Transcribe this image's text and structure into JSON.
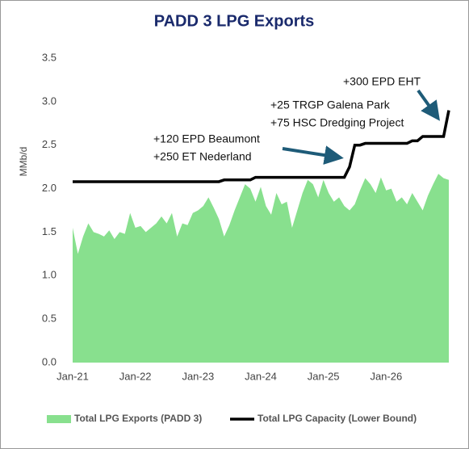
{
  "chart_data": {
    "type": "area-line",
    "title": "PADD 3 LPG Exports",
    "y_label": "MMb/d",
    "categories": [
      "Jan-21",
      null,
      null,
      null,
      null,
      null,
      null,
      null,
      null,
      null,
      null,
      null,
      "Jan-22",
      null,
      null,
      null,
      null,
      null,
      null,
      null,
      null,
      null,
      null,
      null,
      "Jan-23",
      null,
      null,
      null,
      null,
      null,
      null,
      null,
      null,
      null,
      null,
      null,
      "Jan-24",
      null,
      null,
      null,
      null,
      null,
      null,
      null,
      null,
      null,
      null,
      null,
      "Jan-25",
      null,
      null,
      null,
      null,
      null,
      null,
      null,
      null,
      null,
      null,
      null,
      "Jan-26",
      null,
      null,
      null,
      null,
      null,
      null,
      null,
      null,
      null,
      null,
      null,
      null
    ],
    "series": [
      {
        "name": "Total LPG Exports (PADD 3)",
        "kind": "area",
        "color": "#88e08e",
        "values": [
          1.55,
          1.25,
          1.45,
          1.6,
          1.5,
          1.48,
          1.45,
          1.52,
          1.42,
          1.5,
          1.48,
          1.72,
          1.55,
          1.57,
          1.5,
          1.55,
          1.6,
          1.68,
          1.6,
          1.72,
          1.45,
          1.6,
          1.58,
          1.72,
          1.75,
          1.8,
          1.9,
          1.78,
          1.65,
          1.45,
          1.58,
          1.75,
          1.9,
          2.05,
          2.0,
          1.85,
          2.02,
          1.8,
          1.7,
          1.95,
          1.82,
          1.85,
          1.55,
          1.75,
          1.95,
          2.1,
          2.05,
          1.9,
          2.1,
          1.95,
          1.85,
          1.9,
          1.8,
          1.75,
          1.82,
          1.98,
          2.12,
          2.05,
          1.95,
          2.13,
          1.98,
          2.0,
          1.85,
          1.9,
          1.82,
          1.95,
          1.85,
          1.75,
          1.92,
          2.05,
          2.17,
          2.12,
          2.1
        ]
      },
      {
        "name": "Total LPG Capacity (Lower Bound)",
        "kind": "line",
        "color": "#000000",
        "values": [
          2.08,
          2.08,
          2.08,
          2.08,
          2.08,
          2.08,
          2.08,
          2.08,
          2.08,
          2.08,
          2.08,
          2.08,
          2.08,
          2.08,
          2.08,
          2.08,
          2.08,
          2.08,
          2.08,
          2.08,
          2.08,
          2.08,
          2.08,
          2.08,
          2.08,
          2.08,
          2.08,
          2.08,
          2.08,
          2.1,
          2.1,
          2.1,
          2.1,
          2.1,
          2.1,
          2.13,
          2.13,
          2.13,
          2.13,
          2.13,
          2.13,
          2.13,
          2.13,
          2.13,
          2.13,
          2.13,
          2.13,
          2.13,
          2.13,
          2.13,
          2.13,
          2.13,
          2.13,
          2.25,
          2.5,
          2.5,
          2.52,
          2.52,
          2.52,
          2.52,
          2.52,
          2.52,
          2.52,
          2.52,
          2.52,
          2.55,
          2.55,
          2.6,
          2.6,
          2.6,
          2.6,
          2.6,
          2.9
        ]
      }
    ],
    "ylim": [
      0,
      3.5
    ],
    "yticks": [
      {
        "value": 0,
        "label": "0.0"
      },
      0.5,
      {
        "value": 1,
        "label": "1.0"
      },
      1.5,
      {
        "value": 2,
        "label": "2.0"
      },
      2.5,
      {
        "value": 3,
        "label": "3.0"
      },
      3.5
    ],
    "grid": false,
    "legend": "bottom",
    "annotations": [
      "+300 EPD EHT",
      "+25 TRGP Galena Park",
      "+75 HSC Dredging Project",
      "+120 EPD Beaumont",
      "+250 ET Nederland"
    ]
  }
}
